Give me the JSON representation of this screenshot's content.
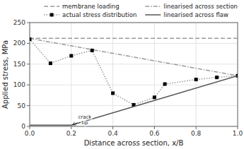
{
  "chart_data": {
    "type": "line",
    "xlabel": "Distance across section, x/B",
    "ylabel": "Applied stress, MPa",
    "xlim": [
      0,
      1
    ],
    "ylim": [
      0,
      250
    ],
    "xticks": [
      {
        "value": 0,
        "label": "0.0"
      },
      0.2,
      0.4,
      0.6,
      0.8,
      {
        "value": 1.0,
        "label": "1.0"
      }
    ],
    "yticks": [
      0,
      50,
      100,
      150,
      200,
      250
    ],
    "grid": true,
    "legend": "upper right",
    "series": [
      {
        "name": "membrane loading",
        "color": "#999999",
        "line_style": "dashed",
        "x": [
          0,
          1
        ],
        "values": [
          212,
          212
        ]
      },
      {
        "name": "linearised across section",
        "color": "#999999",
        "line_style": "dashdot",
        "x": [
          0,
          1
        ],
        "values": [
          212,
          122
        ]
      },
      {
        "name": "actual stress distribution",
        "color": "#999999",
        "line_style": "dotted",
        "marker": "square",
        "x": [
          0,
          0.1,
          0.2,
          0.3,
          0.4,
          0.5,
          0.6,
          0.65,
          0.8,
          0.9,
          1.0
        ],
        "values": [
          210,
          152,
          170,
          183,
          80,
          52,
          70,
          102,
          113,
          118,
          122
        ]
      },
      {
        "name": "linearised across flaw",
        "color": "#555555",
        "line_style": "solid",
        "x": [
          0.0,
          0.2,
          1.0
        ],
        "values": [
          3,
          3,
          122
        ]
      }
    ],
    "annotations": [
      {
        "text": "crack\ntip",
        "x": 0.265,
        "y": 28,
        "arrow_x": 0.205,
        "arrow_y": 4
      }
    ]
  }
}
